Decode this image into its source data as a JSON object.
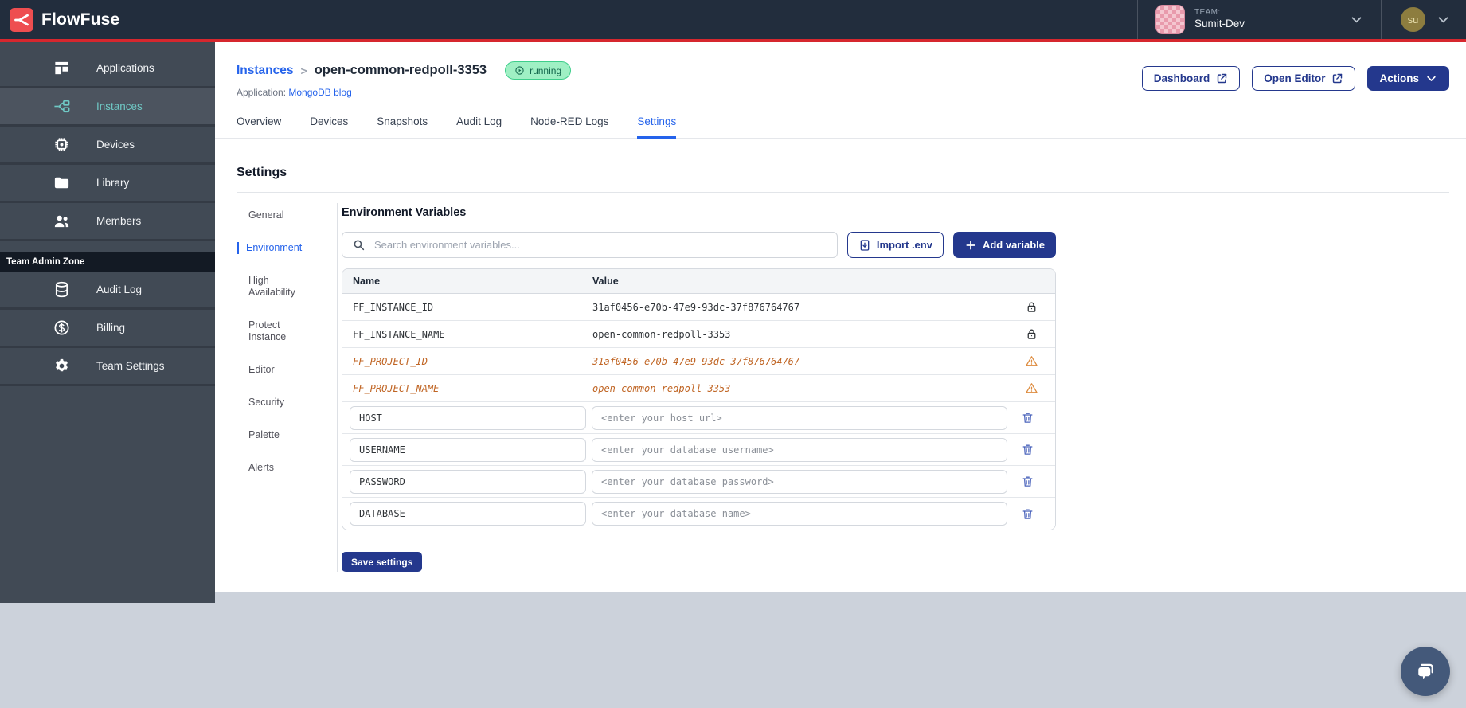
{
  "navbar": {
    "brand": "FlowFuse",
    "team": {
      "label": "TEAM:",
      "name": "Sumit-Dev"
    },
    "user": {
      "initials": "su"
    }
  },
  "sidebar": {
    "items": [
      {
        "label": "Applications",
        "icon": "applications-icon",
        "active": false
      },
      {
        "label": "Instances",
        "icon": "instances-icon",
        "active": true
      },
      {
        "label": "Devices",
        "icon": "devices-icon",
        "active": false
      },
      {
        "label": "Library",
        "icon": "library-icon",
        "active": false
      },
      {
        "label": "Members",
        "icon": "members-icon",
        "active": false
      }
    ],
    "admin_zone_label": "Team Admin Zone",
    "admin_items": [
      {
        "label": "Audit Log",
        "icon": "audit-log-icon"
      },
      {
        "label": "Billing",
        "icon": "billing-icon"
      },
      {
        "label": "Team Settings",
        "icon": "team-settings-icon"
      }
    ]
  },
  "header": {
    "breadcrumb_root": "Instances",
    "breadcrumb_separator": ">",
    "instance_name": "open-common-redpoll-3353",
    "status_badge": "running",
    "application_label": "Application:",
    "application_name": "MongoDB blog",
    "dashboard_button": "Dashboard",
    "open_editor_button": "Open Editor",
    "actions_button": "Actions"
  },
  "tabs": [
    {
      "label": "Overview",
      "active": false
    },
    {
      "label": "Devices",
      "active": false
    },
    {
      "label": "Snapshots",
      "active": false
    },
    {
      "label": "Audit Log",
      "active": false
    },
    {
      "label": "Node-RED Logs",
      "active": false
    },
    {
      "label": "Settings",
      "active": true
    }
  ],
  "settings": {
    "title": "Settings",
    "nav": [
      {
        "label": "General",
        "active": false
      },
      {
        "label": "Environment",
        "active": true
      },
      {
        "label": "High Availability",
        "active": false
      },
      {
        "label": "Protect Instance",
        "active": false
      },
      {
        "label": "Editor",
        "active": false
      },
      {
        "label": "Security",
        "active": false
      },
      {
        "label": "Palette",
        "active": false
      },
      {
        "label": "Alerts",
        "active": false
      }
    ],
    "section_title": "Environment Variables",
    "search_placeholder": "Search environment variables...",
    "import_button": "Import .env",
    "add_button": "Add variable",
    "table": {
      "columns": [
        "Name",
        "Value"
      ],
      "rows": [
        {
          "type": "locked",
          "name": "FF_INSTANCE_ID",
          "value": "31af0456-e70b-47e9-93dc-37f876764767"
        },
        {
          "type": "locked",
          "name": "FF_INSTANCE_NAME",
          "value": "open-common-redpoll-3353"
        },
        {
          "type": "deprecated",
          "name": "FF_PROJECT_ID",
          "value": "31af0456-e70b-47e9-93dc-37f876764767"
        },
        {
          "type": "deprecated",
          "name": "FF_PROJECT_NAME",
          "value": "open-common-redpoll-3353"
        },
        {
          "type": "editable",
          "name": "HOST",
          "value_placeholder": "<enter your host url>"
        },
        {
          "type": "editable",
          "name": "USERNAME",
          "value_placeholder": "<enter your database username>"
        },
        {
          "type": "editable",
          "name": "PASSWORD",
          "value_placeholder": "<enter your database password>"
        },
        {
          "type": "editable",
          "name": "DATABASE",
          "value_placeholder": "<enter your database name>"
        }
      ]
    },
    "save_button": "Save settings"
  },
  "colors": {
    "navy": "#24388D",
    "link": "#2563EB",
    "red": "#D6272E",
    "logo_red": "#EE4E50",
    "teal": "#6FC9C5",
    "badge_bg": "#9FF0C4",
    "badge_border": "#3FCE8B",
    "badge_text": "#14684D",
    "warn": "#DD8A3C",
    "dep": "#C06524",
    "trash": "#4A63BB",
    "navbar": "#222D3D",
    "sidebar": "#414A55",
    "page_gray": "#CCD2DB"
  }
}
